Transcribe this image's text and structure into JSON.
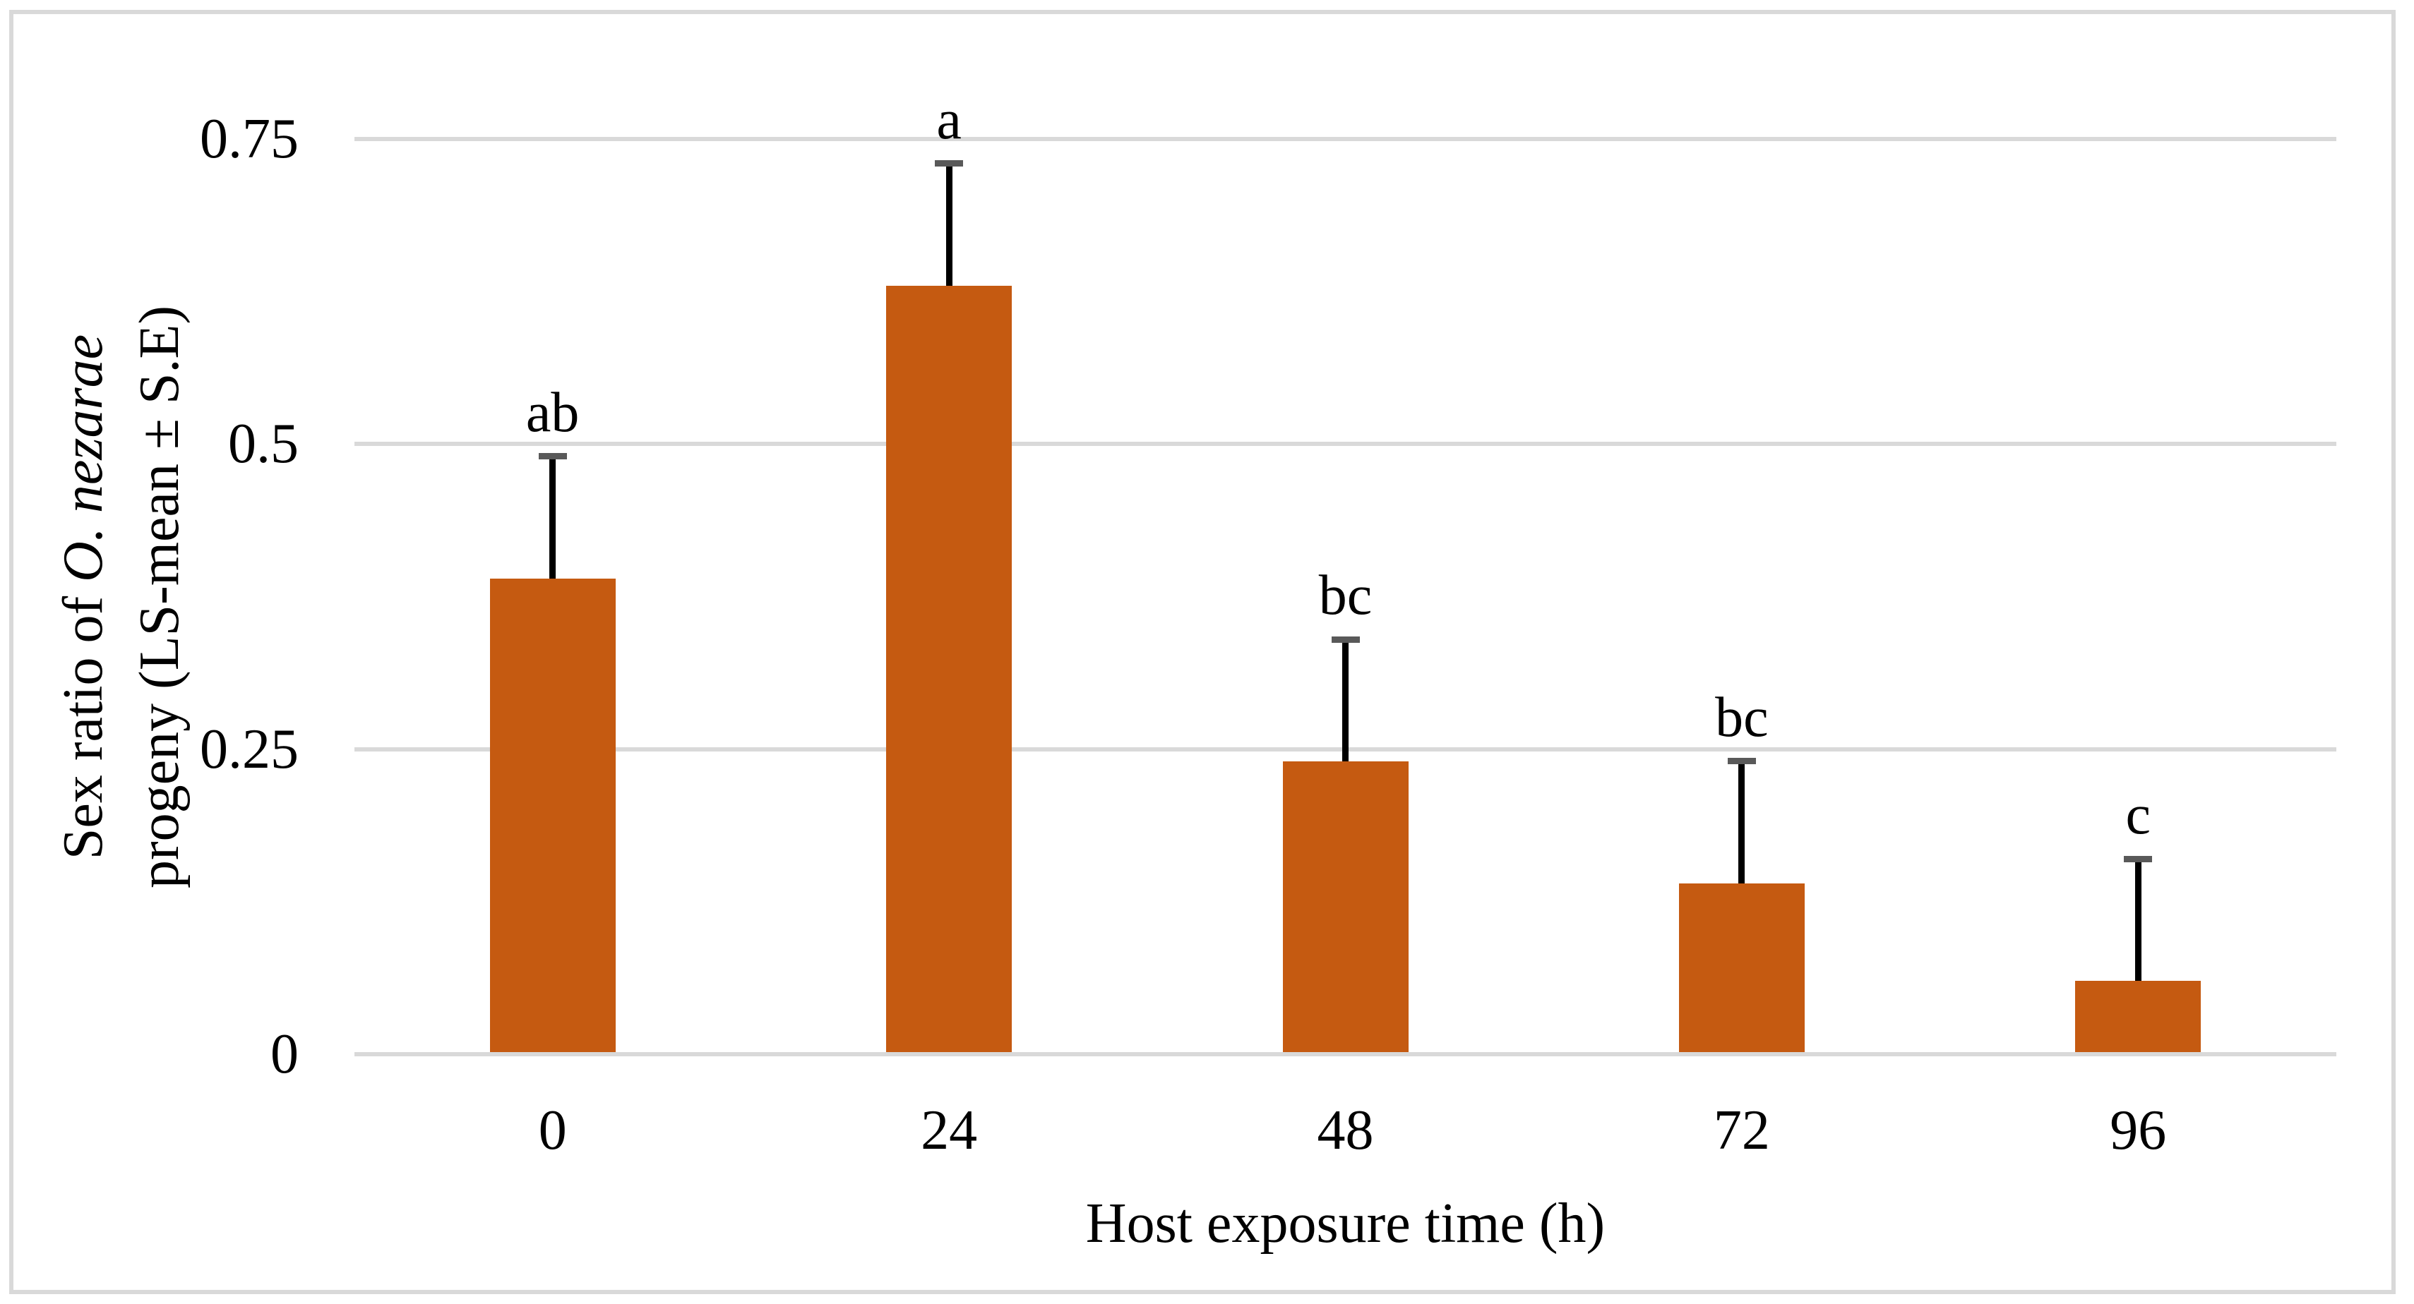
{
  "figure": {
    "background": "#FFFFFF",
    "border_color": "#D9D9D9"
  },
  "chart_data": {
    "type": "bar",
    "categories": [
      "0",
      "24",
      "48",
      "72",
      "96"
    ],
    "values": [
      0.39,
      0.63,
      0.24,
      0.14,
      0.06
    ],
    "errors_se": [
      0.1,
      0.1,
      0.1,
      0.1,
      0.1
    ],
    "sig_letters": [
      "ab",
      "a",
      "bc",
      "bc",
      "c"
    ],
    "xlabel": "Host exposure time (h)",
    "ylabel": "Sex ratio of O. nezarae progeny (LS-mean ± S.E)",
    "ylabel_lines": {
      "line1_regular": "Sex ratio of ",
      "line1_italic": "O. nezarae",
      "line2": "progeny (LS-mean ± S.E)"
    },
    "yticks": [
      {
        "label": "0",
        "value": 0
      },
      {
        "label": "0.25",
        "value": 0.25
      },
      {
        "label": "0.5",
        "value": 0.5
      },
      {
        "label": "0.75",
        "value": 0.75
      }
    ],
    "ylim": [
      0,
      0.75
    ],
    "grid": true,
    "legend": false,
    "colors": {
      "bar": "#C55A11",
      "gridline": "#D9D9D9",
      "error_cap": "#595959",
      "error_line": "#000000",
      "text": "#000000"
    }
  }
}
